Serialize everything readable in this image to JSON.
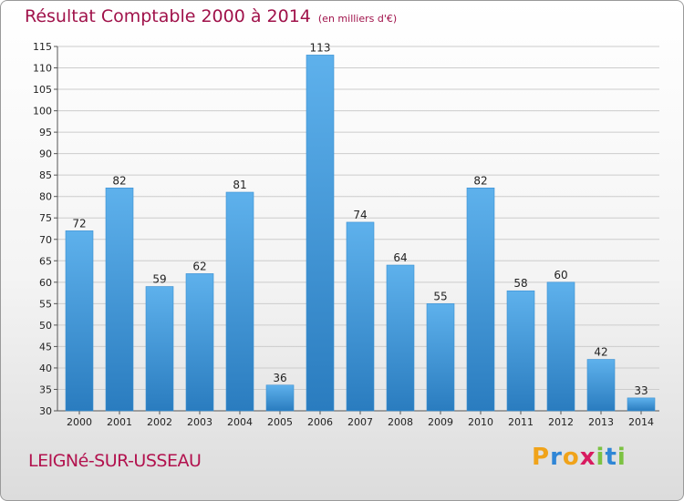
{
  "header": {
    "title": "Résultat Comptable 2000 à 2014",
    "subtitle": "(en milliers d'€)"
  },
  "footer": {
    "commune": "LEIGNé-SUR-USSEAU",
    "brand": "Proxiti"
  },
  "colors": {
    "title": "#a0124a",
    "bar_light": "#5eb1ec",
    "bar_dark": "#2a7cbf",
    "grid": "#cccccc"
  },
  "chart_data": {
    "type": "bar",
    "title": "Résultat Comptable 2000 à 2014",
    "subtitle": "(en milliers d'€)",
    "categories": [
      "2000",
      "2001",
      "2002",
      "2003",
      "2004",
      "2005",
      "2006",
      "2007",
      "2008",
      "2009",
      "2010",
      "2011",
      "2012",
      "2013",
      "2014"
    ],
    "values": [
      72,
      82,
      59,
      62,
      81,
      36,
      113,
      74,
      64,
      55,
      82,
      58,
      60,
      42,
      33
    ],
    "ylim": [
      30,
      115
    ],
    "ytick_step": 5,
    "grid": true,
    "legend": "none"
  }
}
